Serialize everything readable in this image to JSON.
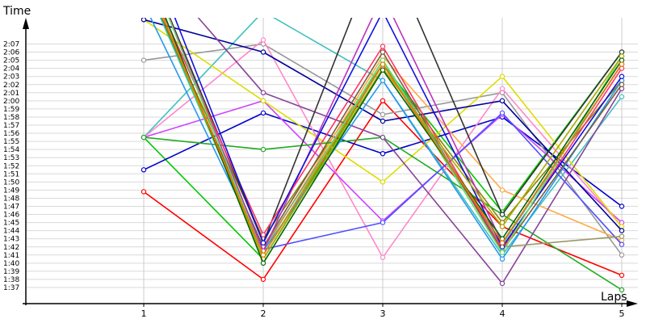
{
  "chart_data": {
    "type": "line",
    "xlabel": "Laps",
    "ylabel": "Time",
    "categories": [
      "1",
      "2",
      "3",
      "4",
      "5"
    ],
    "y_ticks": [
      "1:37",
      "1:38",
      "1:39",
      "1:40",
      "1:41",
      "1:42",
      "1:43",
      "1:44",
      "1:45",
      "1:46",
      "1:47",
      "1:48",
      "1:49",
      "1:50",
      "1:51",
      "1:52",
      "1:53",
      "1:54",
      "1:55",
      "1:56",
      "1:57",
      "1:58",
      "1:59",
      "2:00",
      "2:01",
      "2:02",
      "2:03",
      "2:04",
      "2:05",
      "2:06",
      "2:07"
    ],
    "ylim_seconds": [
      95,
      130
    ],
    "grid": true,
    "series": [
      {
        "color": "#ff0000",
        "values": [
          108.8,
          98.0,
          120.0,
          104.5,
          98.5
        ]
      },
      {
        "color": "#00c800",
        "values": [
          115.5,
          100.5,
          124.5,
          106.3,
          126.0
        ]
      },
      {
        "color": "#0000cc",
        "values": [
          111.5,
          118.5,
          113.5,
          118.0,
          107.0
        ]
      },
      {
        "color": "#999999",
        "values": [
          125.0,
          127.0,
          118.3,
          121.0,
          101.0
        ]
      },
      {
        "color": "#40c0c0",
        "values": [
          115.5,
          131.0,
          122.5,
          101.0,
          120.5
        ]
      },
      {
        "color": "#ff88cc",
        "values": [
          115.5,
          127.5,
          100.7,
          121.5,
          104.5
        ]
      },
      {
        "color": "#cc44ff",
        "values": [
          115.5,
          120.0,
          105.2,
          118.3,
          105.0
        ]
      },
      {
        "color": "#888800",
        "values": [
          135.0,
          103.0,
          124.5,
          105.0,
          122.5
        ]
      },
      {
        "color": "#ffaa44",
        "values": [
          135.0,
          101.5,
          125.5,
          109.0,
          102.8
        ]
      },
      {
        "color": "#dddd00",
        "values": [
          130.0,
          120.0,
          110.0,
          123.0,
          104.5
        ]
      },
      {
        "color": "#000099",
        "values": [
          130.0,
          126.0,
          117.5,
          120.0,
          104.0
        ]
      },
      {
        "color": "#22aa22",
        "values": [
          115.5,
          114.0,
          115.5,
          106.0,
          96.7
        ]
      },
      {
        "color": "#884499",
        "values": [
          138.0,
          121.0,
          115.5,
          97.5,
          121.5
        ]
      },
      {
        "color": "#2299ee",
        "values": [
          132.0,
          101.5,
          122.5,
          100.5,
          122.5
        ]
      },
      {
        "color": "#5050ff",
        "values": [
          135.0,
          101.7,
          105.0,
          118.5,
          102.3
        ]
      },
      {
        "color": "#333333",
        "values": [
          138.0,
          102.5,
          140.0,
          106.0,
          126.0
        ]
      },
      {
        "color": "#999966",
        "values": [
          135.0,
          101.8,
          124.5,
          102.0,
          103.3
        ]
      },
      {
        "color": "#7a5c3c",
        "values": [
          135.0,
          102.0,
          126.0,
          101.5,
          122.0
        ]
      },
      {
        "color": "#33cc99",
        "values": [
          135.0,
          101.0,
          125.0,
          102.3,
          124.5
        ]
      },
      {
        "color": "#bb33bb",
        "values": [
          138.0,
          101.5,
          133.0,
          102.5,
          124.5
        ]
      },
      {
        "color": "#ff3366",
        "values": [
          136.0,
          103.5,
          126.7,
          101.7,
          124.0
        ]
      },
      {
        "color": "#1111dd",
        "values": [
          140.0,
          102.5,
          131.0,
          102.0,
          123.0
        ]
      },
      {
        "color": "#66dd66",
        "values": [
          138.0,
          101.0,
          125.0,
          101.3,
          125.5
        ]
      },
      {
        "color": "#aaaa00",
        "values": [
          136.0,
          100.5,
          124.0,
          104.5,
          125.5
        ]
      },
      {
        "color": "#006600",
        "values": [
          137.0,
          100.0,
          123.8,
          103.0,
          125.0
        ]
      },
      {
        "color": "#ee7700",
        "values": [
          136.0,
          101.0,
          124.5,
          102.5,
          124.5
        ]
      }
    ]
  }
}
